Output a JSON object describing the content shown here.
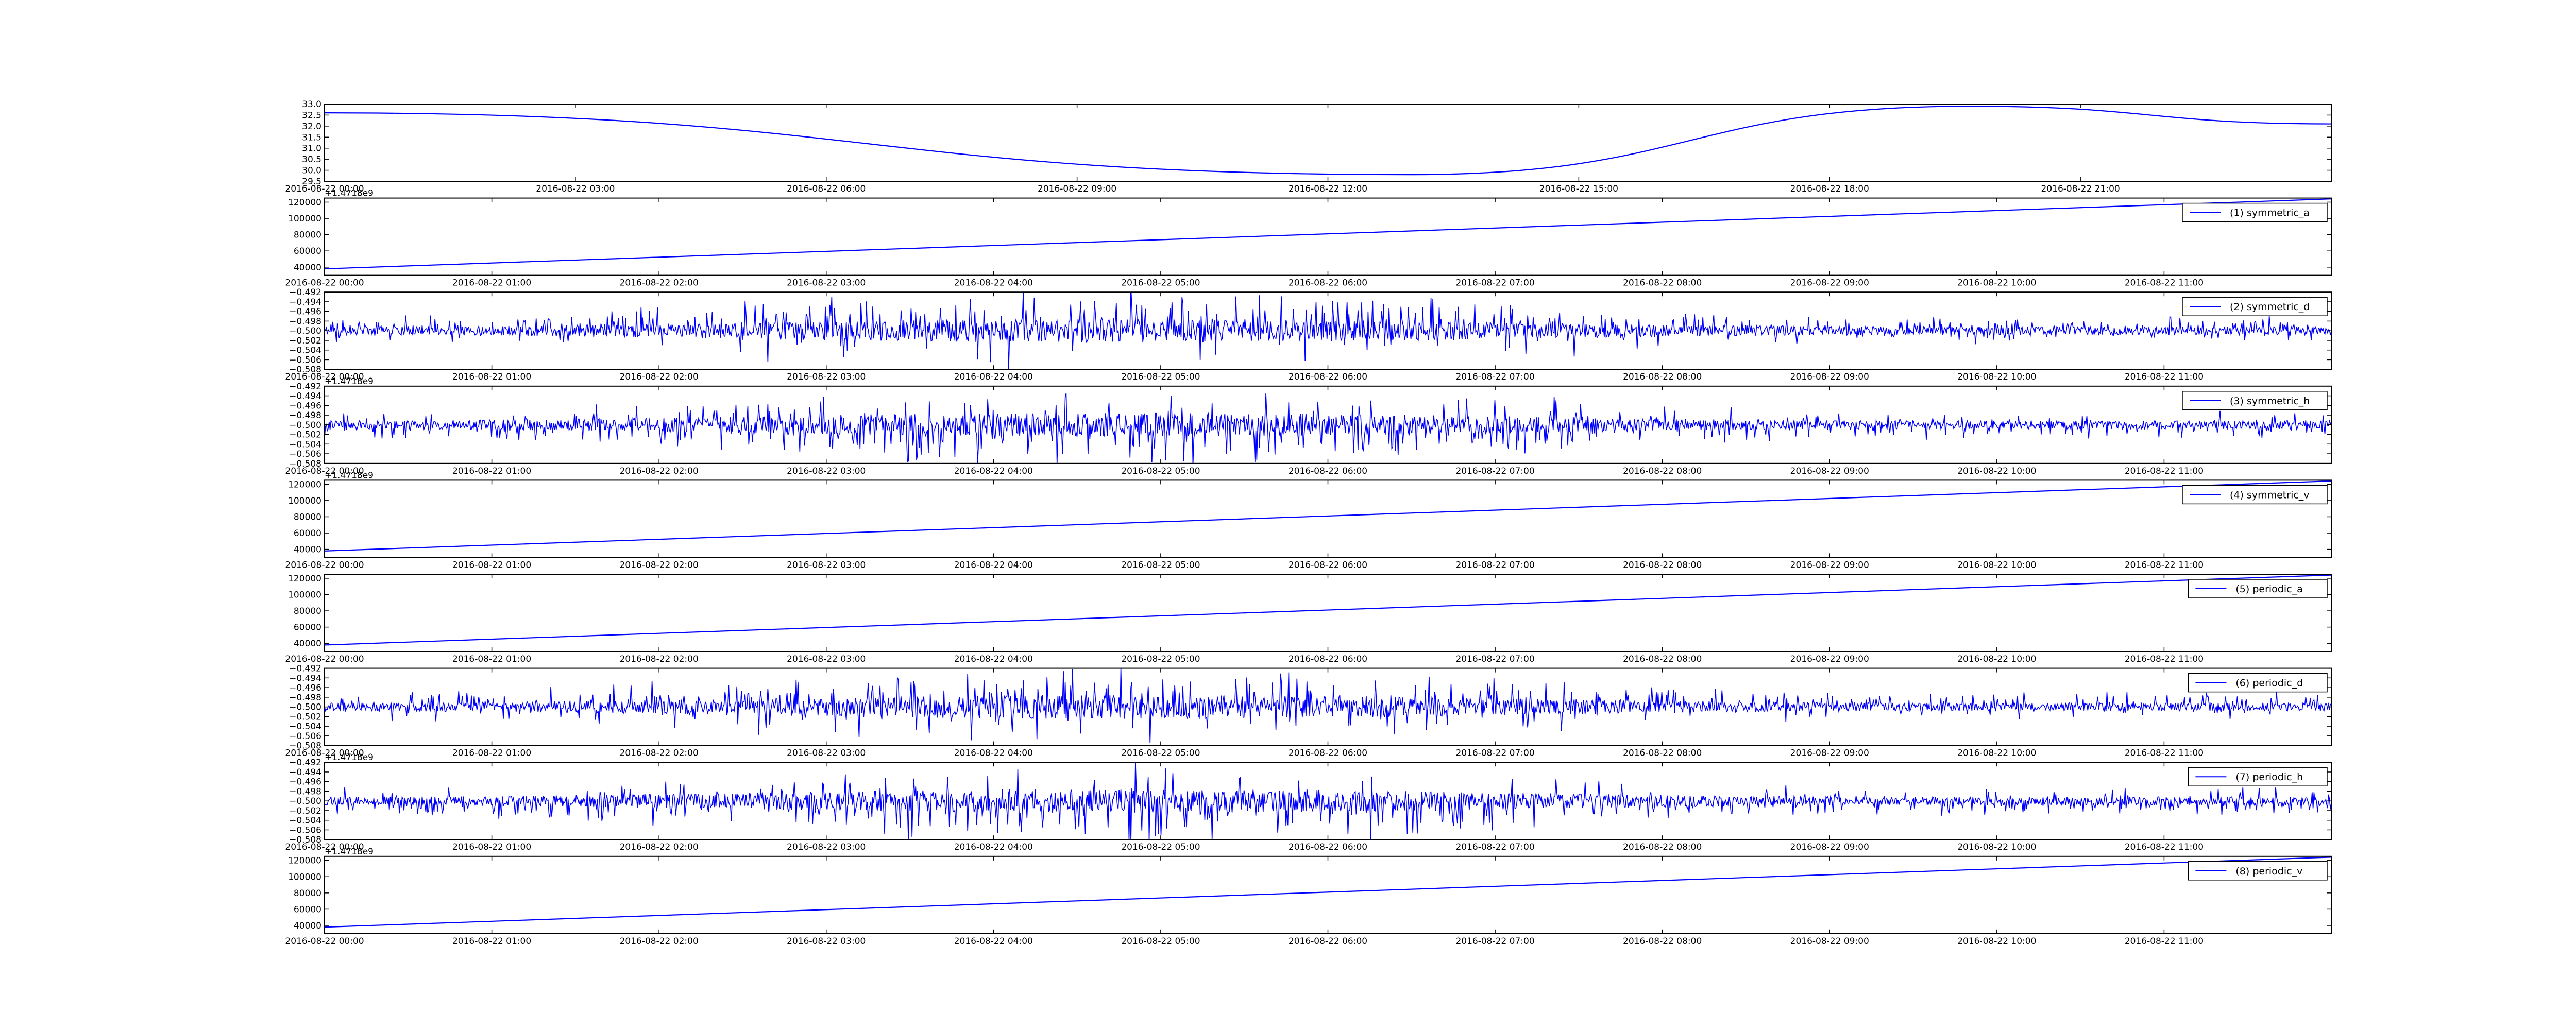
{
  "figure": {
    "line_color": "#0000ff",
    "axes_color": "#000000",
    "background": "#ffffff"
  },
  "chart_data": [
    {
      "type": "line",
      "kind": "sine",
      "x_start": "2016-08-22 00:00",
      "x_end": "2016-08-23 00:00",
      "x_ticks": [
        "2016-08-22 00:00",
        "2016-08-22 03:00",
        "2016-08-22 06:00",
        "2016-08-22 09:00",
        "2016-08-22 12:00",
        "2016-08-22 15:00",
        "2016-08-22 18:00",
        "2016-08-22 21:00"
      ],
      "ylim": [
        29.5,
        33.0
      ],
      "y_ticks": [
        "29.5",
        "30.0",
        "30.5",
        "31.0",
        "31.5",
        "32.0",
        "32.5",
        "33.0"
      ],
      "offset_text": "",
      "legend": "",
      "points": [
        [
          "2016-08-22 00:00",
          32.6
        ],
        [
          "2016-08-22 13:00",
          29.8
        ],
        [
          "2016-08-22 19:40",
          32.9
        ],
        [
          "2016-08-23 00:00",
          32.1
        ]
      ]
    },
    {
      "type": "line",
      "kind": "ramp",
      "x_start": "2016-08-22 00:00",
      "x_end": "2016-08-22 12:00",
      "x_ticks": [
        "2016-08-22 00:00",
        "2016-08-22 01:00",
        "2016-08-22 02:00",
        "2016-08-22 03:00",
        "2016-08-22 04:00",
        "2016-08-22 05:00",
        "2016-08-22 06:00",
        "2016-08-22 07:00",
        "2016-08-22 08:00",
        "2016-08-22 09:00",
        "2016-08-22 10:00",
        "2016-08-22 11:00"
      ],
      "ylim": [
        30000,
        125000
      ],
      "y_ticks": [
        "40000",
        "60000",
        "80000",
        "100000",
        "120000"
      ],
      "offset_text": "+1.4718e9",
      "legend": "(1) symmetric_a",
      "points": [
        [
          "2016-08-22 00:00",
          38000
        ],
        [
          "2016-08-22 12:00",
          124000
        ]
      ]
    },
    {
      "type": "line",
      "kind": "noise",
      "seed": 11,
      "x_start": "2016-08-22 00:00",
      "x_end": "2016-08-22 12:00",
      "x_ticks": [
        "2016-08-22 00:00",
        "2016-08-22 01:00",
        "2016-08-22 02:00",
        "2016-08-22 03:00",
        "2016-08-22 04:00",
        "2016-08-22 05:00",
        "2016-08-22 06:00",
        "2016-08-22 07:00",
        "2016-08-22 08:00",
        "2016-08-22 09:00",
        "2016-08-22 10:00",
        "2016-08-22 11:00"
      ],
      "ylim": [
        -0.508,
        -0.492
      ],
      "y_ticks": [
        "−0.508",
        "−0.506",
        "−0.504",
        "−0.502",
        "−0.500",
        "−0.498",
        "−0.496",
        "−0.494",
        "−0.492"
      ],
      "offset_text": "",
      "legend": "(2) symmetric_d",
      "center": -0.5,
      "amplitude": 0.0055,
      "bias": 1
    },
    {
      "type": "line",
      "kind": "noise",
      "seed": 23,
      "x_start": "2016-08-22 00:00",
      "x_end": "2016-08-22 12:00",
      "x_ticks": [
        "2016-08-22 00:00",
        "2016-08-22 01:00",
        "2016-08-22 02:00",
        "2016-08-22 03:00",
        "2016-08-22 04:00",
        "2016-08-22 05:00",
        "2016-08-22 06:00",
        "2016-08-22 07:00",
        "2016-08-22 08:00",
        "2016-08-22 09:00",
        "2016-08-22 10:00",
        "2016-08-22 11:00"
      ],
      "ylim": [
        -0.508,
        -0.492
      ],
      "y_ticks": [
        "−0.508",
        "−0.506",
        "−0.504",
        "−0.502",
        "−0.500",
        "−0.498",
        "−0.496",
        "−0.494",
        "−0.492"
      ],
      "offset_text": "+1.4718e9",
      "legend": "(3) symmetric_h",
      "center": -0.5,
      "amplitude": 0.0055,
      "bias": -1
    },
    {
      "type": "line",
      "kind": "ramp",
      "x_start": "2016-08-22 00:00",
      "x_end": "2016-08-22 12:00",
      "x_ticks": [
        "2016-08-22 00:00",
        "2016-08-22 01:00",
        "2016-08-22 02:00",
        "2016-08-22 03:00",
        "2016-08-22 04:00",
        "2016-08-22 05:00",
        "2016-08-22 06:00",
        "2016-08-22 07:00",
        "2016-08-22 08:00",
        "2016-08-22 09:00",
        "2016-08-22 10:00",
        "2016-08-22 11:00"
      ],
      "ylim": [
        30000,
        125000
      ],
      "y_ticks": [
        "40000",
        "60000",
        "80000",
        "100000",
        "120000"
      ],
      "offset_text": "+1.4718e9",
      "legend": "(4) symmetric_v",
      "points": [
        [
          "2016-08-22 00:00",
          38000
        ],
        [
          "2016-08-22 12:00",
          124000
        ]
      ]
    },
    {
      "type": "line",
      "kind": "ramp",
      "x_start": "2016-08-22 00:00",
      "x_end": "2016-08-22 12:00",
      "x_ticks": [
        "2016-08-22 00:00",
        "2016-08-22 01:00",
        "2016-08-22 02:00",
        "2016-08-22 03:00",
        "2016-08-22 04:00",
        "2016-08-22 05:00",
        "2016-08-22 06:00",
        "2016-08-22 07:00",
        "2016-08-22 08:00",
        "2016-08-22 09:00",
        "2016-08-22 10:00",
        "2016-08-22 11:00"
      ],
      "ylim": [
        30000,
        125000
      ],
      "y_ticks": [
        "40000",
        "60000",
        "80000",
        "100000",
        "120000"
      ],
      "offset_text": "",
      "legend": "(5) periodic_a",
      "points": [
        [
          "2016-08-22 00:00",
          38000
        ],
        [
          "2016-08-22 12:00",
          124000
        ]
      ]
    },
    {
      "type": "line",
      "kind": "noise",
      "seed": 37,
      "x_start": "2016-08-22 00:00",
      "x_end": "2016-08-22 12:00",
      "x_ticks": [
        "2016-08-22 00:00",
        "2016-08-22 01:00",
        "2016-08-22 02:00",
        "2016-08-22 03:00",
        "2016-08-22 04:00",
        "2016-08-22 05:00",
        "2016-08-22 06:00",
        "2016-08-22 07:00",
        "2016-08-22 08:00",
        "2016-08-22 09:00",
        "2016-08-22 10:00",
        "2016-08-22 11:00"
      ],
      "ylim": [
        -0.508,
        -0.492
      ],
      "y_ticks": [
        "−0.508",
        "−0.506",
        "−0.504",
        "−0.502",
        "−0.500",
        "−0.498",
        "−0.496",
        "−0.494",
        "−0.492"
      ],
      "offset_text": "",
      "legend": "(6) periodic_d",
      "center": -0.5,
      "amplitude": 0.0055,
      "bias": 1
    },
    {
      "type": "line",
      "kind": "noise",
      "seed": 53,
      "x_start": "2016-08-22 00:00",
      "x_end": "2016-08-22 12:00",
      "x_ticks": [
        "2016-08-22 00:00",
        "2016-08-22 01:00",
        "2016-08-22 02:00",
        "2016-08-22 03:00",
        "2016-08-22 04:00",
        "2016-08-22 05:00",
        "2016-08-22 06:00",
        "2016-08-22 07:00",
        "2016-08-22 08:00",
        "2016-08-22 09:00",
        "2016-08-22 10:00",
        "2016-08-22 11:00"
      ],
      "ylim": [
        -0.508,
        -0.492
      ],
      "y_ticks": [
        "−0.508",
        "−0.506",
        "−0.504",
        "−0.502",
        "−0.500",
        "−0.498",
        "−0.496",
        "−0.494",
        "−0.492"
      ],
      "offset_text": "+1.4718e9",
      "legend": "(7) periodic_h",
      "center": -0.5,
      "amplitude": 0.0055,
      "bias": -1
    },
    {
      "type": "line",
      "kind": "ramp",
      "x_start": "2016-08-22 00:00",
      "x_end": "2016-08-22 12:00",
      "x_ticks": [
        "2016-08-22 00:00",
        "2016-08-22 01:00",
        "2016-08-22 02:00",
        "2016-08-22 03:00",
        "2016-08-22 04:00",
        "2016-08-22 05:00",
        "2016-08-22 06:00",
        "2016-08-22 07:00",
        "2016-08-22 08:00",
        "2016-08-22 09:00",
        "2016-08-22 10:00",
        "2016-08-22 11:00"
      ],
      "ylim": [
        30000,
        125000
      ],
      "y_ticks": [
        "40000",
        "60000",
        "80000",
        "100000",
        "120000"
      ],
      "offset_text": "+1.4718e9",
      "legend": "(8) periodic_v",
      "points": [
        [
          "2016-08-22 00:00",
          38000
        ],
        [
          "2016-08-22 12:00",
          124000
        ]
      ]
    }
  ]
}
